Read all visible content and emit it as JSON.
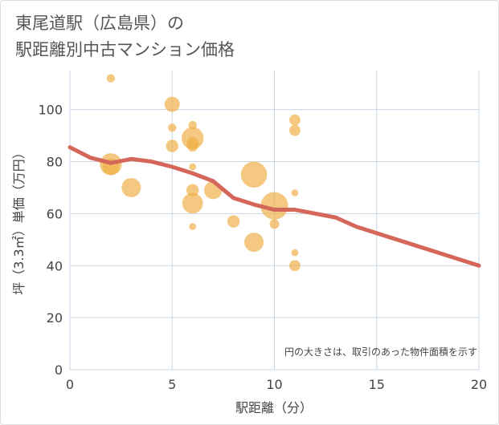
{
  "title_line1": "東尾道駅（広島県）の",
  "title_line2": "駅距離別中古マンション価格",
  "note": "円の大きさは、取引のあった物件面積を示す",
  "chart_data": {
    "type": "scatter",
    "xlabel": "駅距離（分）",
    "ylabel": "坪（3.3㎡）単価（万円）",
    "xlim": [
      0,
      20
    ],
    "ylim": [
      0,
      115
    ],
    "xticks": [
      0,
      5,
      10,
      15,
      20
    ],
    "yticks": [
      0,
      20,
      40,
      60,
      80,
      100
    ],
    "grid": true,
    "colors": {
      "bubble": "#f0b04a",
      "trend": "#d4675a",
      "grid": "#c8d6e4"
    },
    "bubbles": [
      {
        "x": 2,
        "y": 112,
        "size": 2
      },
      {
        "x": 2,
        "y": 79,
        "size": 12
      },
      {
        "x": 2,
        "y": 78,
        "size": 8
      },
      {
        "x": 3,
        "y": 70,
        "size": 10
      },
      {
        "x": 5,
        "y": 102,
        "size": 7
      },
      {
        "x": 5,
        "y": 93,
        "size": 2
      },
      {
        "x": 5,
        "y": 86,
        "size": 5
      },
      {
        "x": 6,
        "y": 94,
        "size": 2
      },
      {
        "x": 6,
        "y": 89,
        "size": 12
      },
      {
        "x": 6,
        "y": 87,
        "size": 5
      },
      {
        "x": 6,
        "y": 86,
        "size": 4
      },
      {
        "x": 6,
        "y": 78,
        "size": 1
      },
      {
        "x": 6,
        "y": 69,
        "size": 5
      },
      {
        "x": 6,
        "y": 64,
        "size": 11
      },
      {
        "x": 6,
        "y": 55,
        "size": 1
      },
      {
        "x": 7,
        "y": 69,
        "size": 9
      },
      {
        "x": 8,
        "y": 57,
        "size": 5
      },
      {
        "x": 9,
        "y": 75,
        "size": 15
      },
      {
        "x": 9,
        "y": 49,
        "size": 10
      },
      {
        "x": 10,
        "y": 63,
        "size": 16
      },
      {
        "x": 10,
        "y": 56,
        "size": 3
      },
      {
        "x": 11,
        "y": 96,
        "size": 4
      },
      {
        "x": 11,
        "y": 92,
        "size": 4
      },
      {
        "x": 11,
        "y": 68,
        "size": 1
      },
      {
        "x": 11,
        "y": 45,
        "size": 1
      },
      {
        "x": 11,
        "y": 40,
        "size": 4
      }
    ],
    "trend": {
      "x": [
        0,
        1,
        2,
        3,
        4,
        5,
        6,
        7,
        8,
        9,
        10,
        11,
        12,
        13,
        14,
        15,
        16,
        17,
        18,
        19,
        20
      ],
      "y": [
        85.5,
        81.5,
        79.5,
        81,
        80,
        78,
        75.5,
        72.5,
        66,
        63.5,
        61.5,
        61.5,
        60,
        58.5,
        55,
        52.5,
        50,
        47.5,
        45,
        42.5,
        40
      ]
    }
  }
}
